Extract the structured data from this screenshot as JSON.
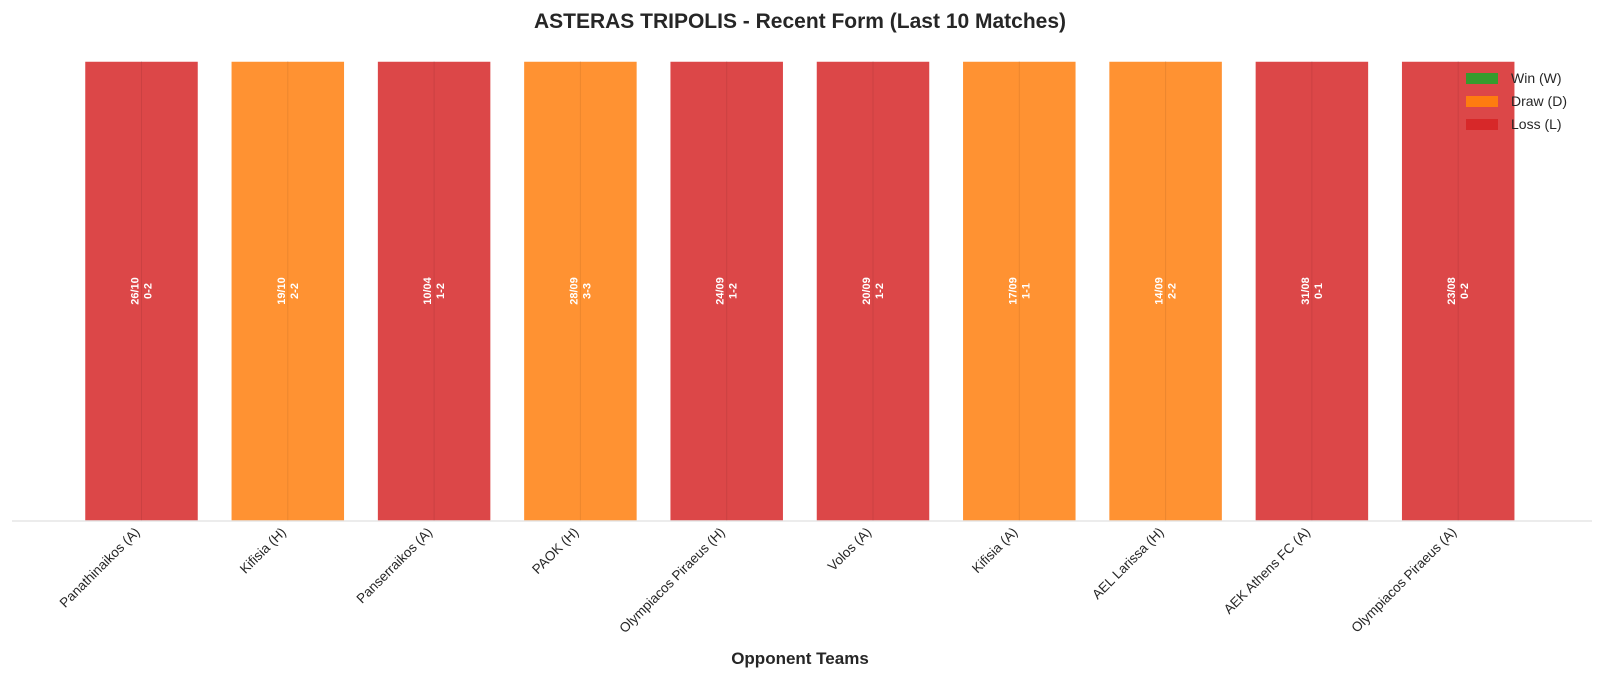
{
  "chart_data": {
    "type": "bar",
    "title": "ASTERAS TRIPOLIS - Recent Form (Last 10 Matches)",
    "xlabel": "Opponent Teams",
    "ylabel": "",
    "grid": false,
    "legend_position": "top-right",
    "legend": [
      {
        "key": "W",
        "label": "Win (W)",
        "color": "#2ca02c"
      },
      {
        "key": "D",
        "label": "Draw (D)",
        "color": "#ff7f0e"
      },
      {
        "key": "L",
        "label": "Loss (L)",
        "color": "#d62728"
      }
    ],
    "categories": [
      "Panathinaikos (A)",
      "Kifisia (H)",
      "Panserraikos (A)",
      "PAOK (H)",
      "Olympiacos Piraeus (H)",
      "Volos (A)",
      "Kifisia (A)",
      "AEL Larissa (H)",
      "AEK Athens FC (A)",
      "Olympiacos Piraeus (A)"
    ],
    "values": [
      1,
      1,
      1,
      1,
      1,
      1,
      1,
      1,
      1,
      1
    ],
    "results": [
      "L",
      "D",
      "L",
      "D",
      "L",
      "L",
      "D",
      "D",
      "L",
      "L"
    ],
    "dates": [
      "26/10",
      "19/10",
      "10/04",
      "28/09",
      "24/09",
      "20/09",
      "17/09",
      "14/09",
      "31/08",
      "23/08"
    ],
    "scores": [
      "0-2",
      "2-2",
      "1-2",
      "3-3",
      "1-2",
      "1-2",
      "1-1",
      "2-2",
      "0-1",
      "0-2"
    ],
    "ylim": [
      0,
      1
    ]
  }
}
